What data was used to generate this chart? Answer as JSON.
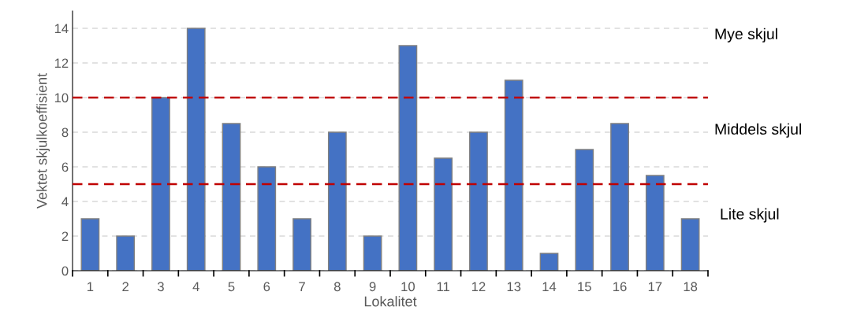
{
  "chart_data": {
    "type": "bar",
    "xlabel": "Lokalitet",
    "ylabel": "Vektet skjulkoeffisient",
    "categories": [
      "1",
      "2",
      "3",
      "4",
      "5",
      "6",
      "7",
      "8",
      "9",
      "10",
      "11",
      "12",
      "13",
      "14",
      "15",
      "16",
      "17",
      "18"
    ],
    "values": [
      3,
      2,
      10,
      14,
      8.5,
      6,
      3,
      8,
      2,
      13,
      6.5,
      8,
      11,
      1,
      7,
      8.5,
      5.5,
      3
    ],
    "color": "#4472c4",
    "ylim": [
      0,
      15
    ],
    "yticks": [
      0,
      2,
      4,
      6,
      8,
      10,
      12,
      14
    ],
    "grid": "y",
    "ref_lines": [
      {
        "axis": "y",
        "value": 10,
        "color": "#c00000",
        "line_style": "dashed"
      },
      {
        "axis": "y",
        "value": 5,
        "color": "#c00000",
        "line_style": "dashed"
      }
    ],
    "annotations": [
      "Mye skjul",
      "Middels skjul",
      "Lite skjul"
    ]
  }
}
